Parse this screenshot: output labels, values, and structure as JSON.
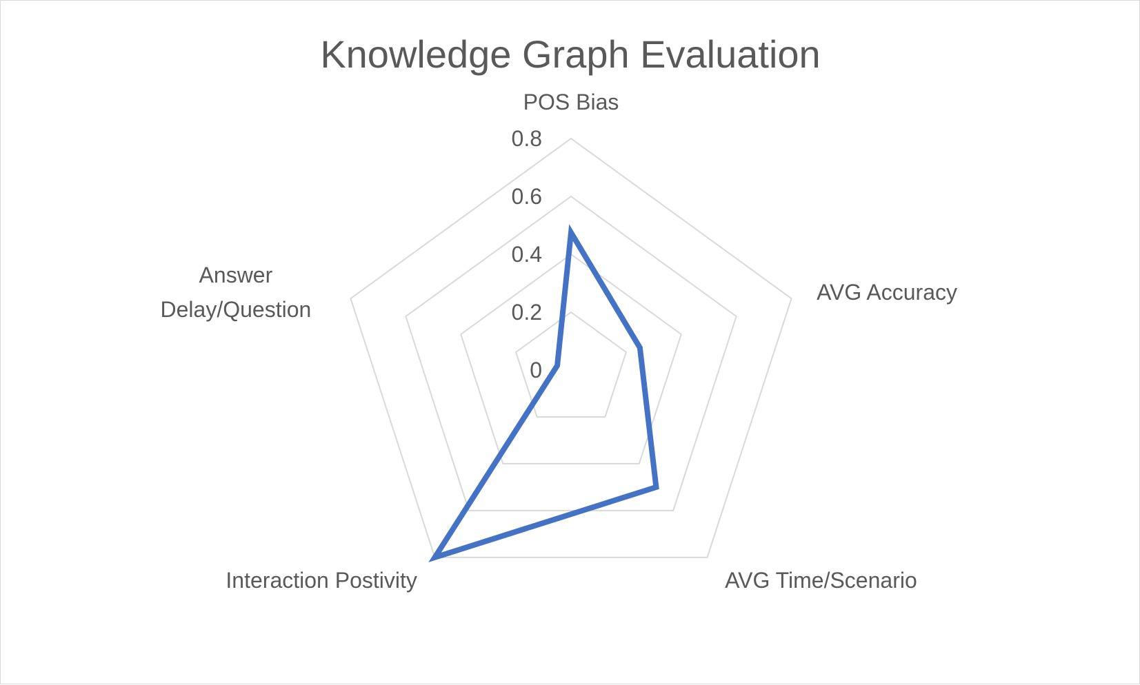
{
  "chart_data": {
    "type": "radar",
    "title": "Knowledge Graph Evaluation",
    "categories": [
      "POS Bias",
      "AVG Accuracy",
      "AVG Time/Scenario",
      "Interaction Postivity",
      "Answer Delay/Question"
    ],
    "category_lines": [
      [
        "POS Bias"
      ],
      [
        "AVG Accuracy"
      ],
      [
        "AVG Time/Scenario"
      ],
      [
        "Interaction Postivity"
      ],
      [
        "Answer",
        "Delay/Question"
      ]
    ],
    "series": [
      {
        "values": [
          0.475,
          0.25,
          0.5,
          0.8,
          0.05
        ],
        "color": "#4472c4"
      }
    ],
    "rlim": [
      0,
      0.8
    ],
    "ticks": [
      "0",
      "0.2",
      "0.4",
      "0.6",
      "0.8"
    ],
    "grid": true,
    "legend": "none"
  }
}
